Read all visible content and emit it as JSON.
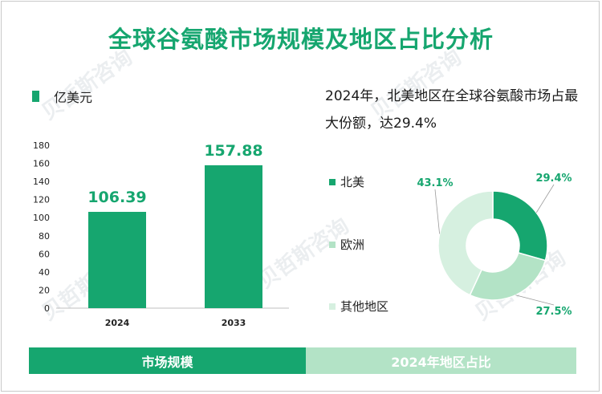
{
  "title": "全球谷氨酸市场规模及地区占比分析",
  "unit_label": "亿美元",
  "headline": "2024年，北美地区在全球谷氨酸市场占最大份额，达29.4%",
  "footer": {
    "left": "市场规模",
    "right": "2024年地区占比"
  },
  "colors": {
    "accent": "#16a66f",
    "mid": "#b3e3c6",
    "light": "#d6f0e0"
  },
  "chart_data": [
    {
      "type": "bar",
      "categories": [
        "2024",
        "2033"
      ],
      "values": [
        106.39,
        157.88
      ],
      "value_labels": [
        "106.39",
        "157.88"
      ],
      "ylim": [
        0,
        180
      ],
      "yticks": [
        0,
        20,
        40,
        60,
        80,
        100,
        120,
        140,
        160,
        180
      ],
      "grid": false
    },
    {
      "type": "pie",
      "donut": true,
      "labels": [
        "北美",
        "欧洲",
        "其他地区"
      ],
      "values": [
        29.4,
        27.5,
        43.1
      ],
      "value_labels": [
        "29.4%",
        "27.5%",
        "43.1%"
      ],
      "colors": [
        "#16a66f",
        "#b3e3c6",
        "#d6f0e0"
      ],
      "legend": "left"
    }
  ]
}
